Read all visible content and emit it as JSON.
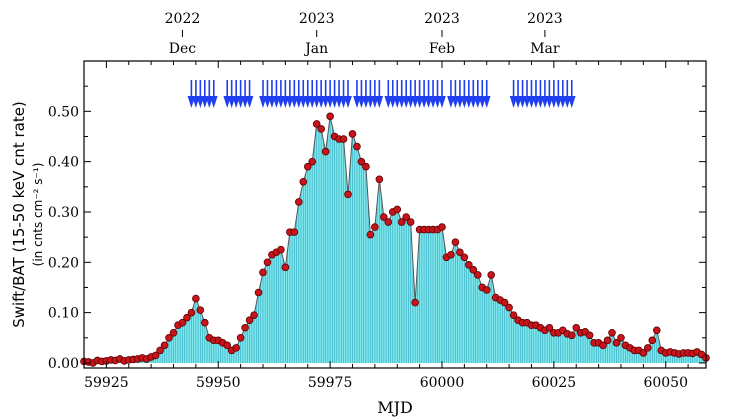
{
  "chart_data": {
    "type": "area",
    "xlabel": "MJD",
    "ylabel": "Swift/BAT (15-50 keV cnt rate)",
    "ylabel_sub": "(in cnts cm⁻² s⁻¹)",
    "xlim": [
      59920,
      60059
    ],
    "ylim": [
      -0.01,
      0.6
    ],
    "x_ticks": [
      59925,
      59950,
      59975,
      60000,
      60025,
      60050
    ],
    "y_ticks": [
      0.0,
      0.1,
      0.2,
      0.3,
      0.4,
      0.5
    ],
    "y_tick_labels": [
      "0.00",
      "0.10",
      "0.20",
      "0.30",
      "0.40",
      "0.50"
    ],
    "top_axis": [
      {
        "x": 59942,
        "year": "2022",
        "month": "Dec"
      },
      {
        "x": 59972,
        "year": "2023",
        "month": "Jan"
      },
      {
        "x": 60000,
        "year": "2023",
        "month": "Feb"
      },
      {
        "x": 60023,
        "year": "2023",
        "month": "Mar"
      }
    ],
    "colors": {
      "fill": "#7fe8ec",
      "fill_lines": "#3aaec4",
      "marker": "#c8141a",
      "marker_edge": "#5a0000",
      "line": "#555555",
      "arrow": "#1f3ff0"
    },
    "series": [
      {
        "x": [
          59920,
          59921,
          59922,
          59923,
          59924,
          59925,
          59926,
          59927,
          59928,
          59929,
          59930,
          59931,
          59932,
          59933,
          59934,
          59935,
          59936,
          59937,
          59938,
          59939,
          59940,
          59941,
          59942,
          59943,
          59944,
          59945,
          59946,
          59947,
          59948,
          59949,
          59950,
          59951,
          59952,
          59953,
          59954,
          59955,
          59956,
          59957,
          59958,
          59959,
          59960,
          59961,
          59962,
          59963,
          59964,
          59965,
          59966,
          59967,
          59968,
          59969,
          59970,
          59971,
          59972,
          59973,
          59974,
          59975,
          59976,
          59977,
          59978,
          59979,
          59980,
          59981,
          59982,
          59983,
          59984,
          59985,
          59986,
          59987,
          59988,
          59989,
          59990,
          59991,
          59992,
          59993,
          59994,
          59995,
          59996,
          59997,
          59998,
          59999,
          60000,
          60001,
          60002,
          60003,
          60004,
          60005,
          60006,
          60007,
          60008,
          60009,
          60010,
          60011,
          60012,
          60013,
          60014,
          60015,
          60016,
          60017,
          60018,
          60019,
          60020,
          60021,
          60022,
          60023,
          60024,
          60025,
          60026,
          60027,
          60028,
          60029,
          60030,
          60031,
          60032,
          60033,
          60034,
          60035,
          60036,
          60037,
          60038,
          60039,
          60040,
          60041,
          60042,
          60043,
          60044,
          60045,
          60046,
          60047,
          60048,
          60049,
          60050,
          60051,
          60052,
          60053,
          60054,
          60055,
          60056,
          60057,
          60058,
          60059
        ],
        "y": [
          0.003,
          0.002,
          0.0,
          0.005,
          0.003,
          0.004,
          0.006,
          0.005,
          0.008,
          0.004,
          0.006,
          0.007,
          0.008,
          0.01,
          0.008,
          0.012,
          0.015,
          0.025,
          0.035,
          0.05,
          0.06,
          0.075,
          0.08,
          0.09,
          0.1,
          0.128,
          0.105,
          0.08,
          0.05,
          0.045,
          0.045,
          0.04,
          0.035,
          0.025,
          0.03,
          0.05,
          0.07,
          0.085,
          0.095,
          0.14,
          0.18,
          0.2,
          0.215,
          0.22,
          0.225,
          0.19,
          0.26,
          0.26,
          0.32,
          0.36,
          0.39,
          0.4,
          0.475,
          0.465,
          0.42,
          0.49,
          0.45,
          0.445,
          0.445,
          0.335,
          0.455,
          0.43,
          0.4,
          0.39,
          0.255,
          0.27,
          0.365,
          0.29,
          0.28,
          0.3,
          0.305,
          0.28,
          0.29,
          0.28,
          0.12,
          0.265,
          0.265,
          0.265,
          0.265,
          0.265,
          0.27,
          0.21,
          0.215,
          0.24,
          0.22,
          0.21,
          0.195,
          0.185,
          0.175,
          0.15,
          0.145,
          0.175,
          0.13,
          0.125,
          0.12,
          0.11,
          0.095,
          0.085,
          0.08,
          0.08,
          0.075,
          0.075,
          0.07,
          0.065,
          0.07,
          0.06,
          0.06,
          0.065,
          0.058,
          0.055,
          0.07,
          0.06,
          0.062,
          0.055,
          0.04,
          0.04,
          0.035,
          0.045,
          0.06,
          0.04,
          0.05,
          0.035,
          0.03,
          0.025,
          0.025,
          0.02,
          0.03,
          0.045,
          0.065,
          0.025,
          0.02,
          0.022,
          0.02,
          0.018,
          0.02,
          0.02,
          0.019,
          0.022,
          0.017,
          0.01
        ]
      }
    ],
    "arrow_x": [
      59944,
      59945,
      59946,
      59947,
      59948,
      59949,
      59952,
      59953,
      59954,
      59955,
      59956,
      59957,
      59960,
      59961,
      59962,
      59963,
      59964,
      59965,
      59966,
      59967,
      59968,
      59969,
      59970,
      59971,
      59972,
      59973,
      59974,
      59975,
      59976,
      59977,
      59978,
      59979,
      59981,
      59982,
      59983,
      59984,
      59985,
      59986,
      59988,
      59989,
      59990,
      59991,
      59992,
      59993,
      59994,
      59995,
      59996,
      59997,
      59998,
      59999,
      60000,
      60002,
      60003,
      60004,
      60005,
      60006,
      60007,
      60008,
      60009,
      60010,
      60016,
      60017,
      60018,
      60019,
      60020,
      60021,
      60022,
      60023,
      60024,
      60025,
      60026,
      60027,
      60028,
      60029
    ]
  }
}
